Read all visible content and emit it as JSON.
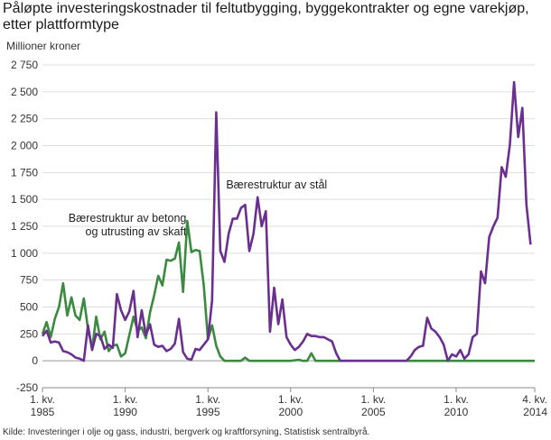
{
  "chart_data": {
    "type": "line",
    "title": "Påløpte investeringskostnader til feltutbygging, byggekontrakter og egne varekjøp, etter plattformtype",
    "ylabel": "Millioner kroner",
    "source": "Kilde: Investeringer i olje og gass, industri, bergverk og kraftforsyning, Statistisk sentralbyrå.",
    "ylim": [
      -250,
      2750
    ],
    "yticks": [
      -250,
      0,
      250,
      500,
      750,
      1000,
      1250,
      1500,
      1750,
      2000,
      2250,
      2500,
      2750
    ],
    "ytick_labels": [
      "-250",
      "0",
      "250",
      "500",
      "750",
      "1 000",
      "1 250",
      "1 500",
      "1 750",
      "2 000",
      "2 250",
      "2 500",
      "2 750"
    ],
    "xlim": [
      1985.0,
      2014.75
    ],
    "xticks": [
      {
        "x": 1985.0,
        "line1": "1. kv.",
        "line2": "1985"
      },
      {
        "x": 1990.0,
        "line1": "1. kv.",
        "line2": "1990"
      },
      {
        "x": 1995.0,
        "line1": "1. kv.",
        "line2": "1995"
      },
      {
        "x": 2000.0,
        "line1": "1. kv.",
        "line2": "2000"
      },
      {
        "x": 2005.0,
        "line1": "1. kv.",
        "line2": "2005"
      },
      {
        "x": 2010.0,
        "line1": "1. kv.",
        "line2": "2010"
      },
      {
        "x": 2014.75,
        "line1": "4. kv.",
        "line2": "2014"
      }
    ],
    "grid": true,
    "series": [
      {
        "name": "Bærestruktur av betong og utrusting av skaft",
        "label_lines": [
          "Bærestruktur av betong",
          "og utrusting av skaft"
        ],
        "color": "#3a8a3f",
        "points": [
          [
            1985.0,
            250
          ],
          [
            1985.25,
            360
          ],
          [
            1985.5,
            220
          ],
          [
            1985.75,
            390
          ],
          [
            1986.0,
            500
          ],
          [
            1986.25,
            720
          ],
          [
            1986.5,
            420
          ],
          [
            1986.75,
            590
          ],
          [
            1987.0,
            420
          ],
          [
            1987.25,
            380
          ],
          [
            1987.5,
            580
          ],
          [
            1987.75,
            300
          ],
          [
            1988.0,
            110
          ],
          [
            1988.25,
            410
          ],
          [
            1988.5,
            200
          ],
          [
            1988.75,
            270
          ],
          [
            1989.0,
            90
          ],
          [
            1989.25,
            140
          ],
          [
            1989.5,
            150
          ],
          [
            1989.75,
            40
          ],
          [
            1990.0,
            70
          ],
          [
            1990.25,
            240
          ],
          [
            1990.5,
            410
          ],
          [
            1990.75,
            280
          ],
          [
            1991.0,
            310
          ],
          [
            1991.25,
            210
          ],
          [
            1991.5,
            450
          ],
          [
            1991.75,
            610
          ],
          [
            1992.0,
            790
          ],
          [
            1992.25,
            700
          ],
          [
            1992.5,
            940
          ],
          [
            1992.75,
            930
          ],
          [
            1993.0,
            950
          ],
          [
            1993.25,
            1100
          ],
          [
            1993.5,
            640
          ],
          [
            1993.75,
            1300
          ],
          [
            1994.0,
            1010
          ],
          [
            1994.25,
            1030
          ],
          [
            1994.5,
            1020
          ],
          [
            1994.75,
            700
          ],
          [
            1995.0,
            200
          ],
          [
            1995.25,
            330
          ],
          [
            1995.5,
            140
          ],
          [
            1995.75,
            40
          ],
          [
            1996.0,
            0
          ],
          [
            1996.5,
            0
          ],
          [
            1997.0,
            0
          ],
          [
            1997.25,
            30
          ],
          [
            1997.5,
            0
          ],
          [
            1998.0,
            0
          ],
          [
            1998.5,
            0
          ],
          [
            1999.0,
            0
          ],
          [
            1999.5,
            0
          ],
          [
            2000.0,
            0
          ],
          [
            2000.5,
            10
          ],
          [
            2000.75,
            0
          ],
          [
            2001.0,
            0
          ],
          [
            2001.25,
            70
          ],
          [
            2001.5,
            0
          ],
          [
            2002.0,
            0
          ],
          [
            2003.0,
            0
          ],
          [
            2004.0,
            0
          ],
          [
            2005.0,
            0
          ],
          [
            2006.0,
            0
          ],
          [
            2007.0,
            0
          ],
          [
            2008.0,
            0
          ],
          [
            2009.0,
            0
          ],
          [
            2010.0,
            0
          ],
          [
            2011.0,
            0
          ],
          [
            2012.0,
            0
          ],
          [
            2013.0,
            0
          ],
          [
            2014.0,
            0
          ],
          [
            2014.75,
            0
          ]
        ]
      },
      {
        "name": "Bærestruktur av stål",
        "label_lines": [
          "Bærestruktur av stål"
        ],
        "color": "#6a2f8f",
        "points": [
          [
            1985.0,
            230
          ],
          [
            1985.25,
            280
          ],
          [
            1985.5,
            170
          ],
          [
            1985.75,
            180
          ],
          [
            1986.0,
            170
          ],
          [
            1986.25,
            90
          ],
          [
            1986.5,
            80
          ],
          [
            1986.75,
            60
          ],
          [
            1987.0,
            30
          ],
          [
            1987.25,
            20
          ],
          [
            1987.5,
            0
          ],
          [
            1987.75,
            330
          ],
          [
            1988.0,
            100
          ],
          [
            1988.25,
            250
          ],
          [
            1988.5,
            230
          ],
          [
            1988.75,
            110
          ],
          [
            1989.0,
            150
          ],
          [
            1989.25,
            120
          ],
          [
            1989.5,
            620
          ],
          [
            1989.75,
            470
          ],
          [
            1990.0,
            380
          ],
          [
            1990.25,
            460
          ],
          [
            1990.5,
            650
          ],
          [
            1990.75,
            220
          ],
          [
            1991.0,
            470
          ],
          [
            1991.25,
            240
          ],
          [
            1991.5,
            340
          ],
          [
            1991.75,
            150
          ],
          [
            1992.0,
            130
          ],
          [
            1992.25,
            140
          ],
          [
            1992.5,
            90
          ],
          [
            1992.75,
            110
          ],
          [
            1993.0,
            160
          ],
          [
            1993.25,
            390
          ],
          [
            1993.5,
            80
          ],
          [
            1993.75,
            20
          ],
          [
            1994.0,
            10
          ],
          [
            1994.25,
            110
          ],
          [
            1994.5,
            100
          ],
          [
            1994.75,
            150
          ],
          [
            1995.0,
            200
          ],
          [
            1995.25,
            560
          ],
          [
            1995.5,
            2310
          ],
          [
            1995.75,
            1020
          ],
          [
            1996.0,
            920
          ],
          [
            1996.25,
            1180
          ],
          [
            1996.5,
            1320
          ],
          [
            1996.75,
            1320
          ],
          [
            1997.0,
            1420
          ],
          [
            1997.25,
            1450
          ],
          [
            1997.5,
            1020
          ],
          [
            1997.75,
            1180
          ],
          [
            1998.0,
            1520
          ],
          [
            1998.25,
            1250
          ],
          [
            1998.5,
            1390
          ],
          [
            1998.75,
            270
          ],
          [
            1999.0,
            680
          ],
          [
            1999.25,
            340
          ],
          [
            1999.5,
            570
          ],
          [
            1999.75,
            220
          ],
          [
            2000.0,
            150
          ],
          [
            2000.25,
            100
          ],
          [
            2000.5,
            130
          ],
          [
            2000.75,
            180
          ],
          [
            2001.0,
            250
          ],
          [
            2001.25,
            230
          ],
          [
            2001.5,
            230
          ],
          [
            2001.75,
            220
          ],
          [
            2002.0,
            220
          ],
          [
            2002.25,
            200
          ],
          [
            2002.5,
            180
          ],
          [
            2002.75,
            70
          ],
          [
            2003.0,
            0
          ],
          [
            2003.5,
            0
          ],
          [
            2004.0,
            0
          ],
          [
            2005.0,
            0
          ],
          [
            2006.0,
            0
          ],
          [
            2007.0,
            0
          ],
          [
            2007.25,
            40
          ],
          [
            2007.5,
            100
          ],
          [
            2007.75,
            130
          ],
          [
            2008.0,
            140
          ],
          [
            2008.25,
            400
          ],
          [
            2008.5,
            300
          ],
          [
            2008.75,
            270
          ],
          [
            2009.0,
            220
          ],
          [
            2009.25,
            150
          ],
          [
            2009.5,
            0
          ],
          [
            2009.75,
            60
          ],
          [
            2010.0,
            40
          ],
          [
            2010.25,
            100
          ],
          [
            2010.5,
            20
          ],
          [
            2010.75,
            60
          ],
          [
            2011.0,
            220
          ],
          [
            2011.25,
            250
          ],
          [
            2011.5,
            830
          ],
          [
            2011.75,
            720
          ],
          [
            2012.0,
            1150
          ],
          [
            2012.25,
            1250
          ],
          [
            2012.5,
            1330
          ],
          [
            2012.75,
            1800
          ],
          [
            2013.0,
            1710
          ],
          [
            2013.25,
            2010
          ],
          [
            2013.5,
            2590
          ],
          [
            2013.75,
            2080
          ],
          [
            2014.0,
            2350
          ],
          [
            2014.25,
            1450
          ],
          [
            2014.5,
            1080
          ]
        ]
      }
    ]
  }
}
